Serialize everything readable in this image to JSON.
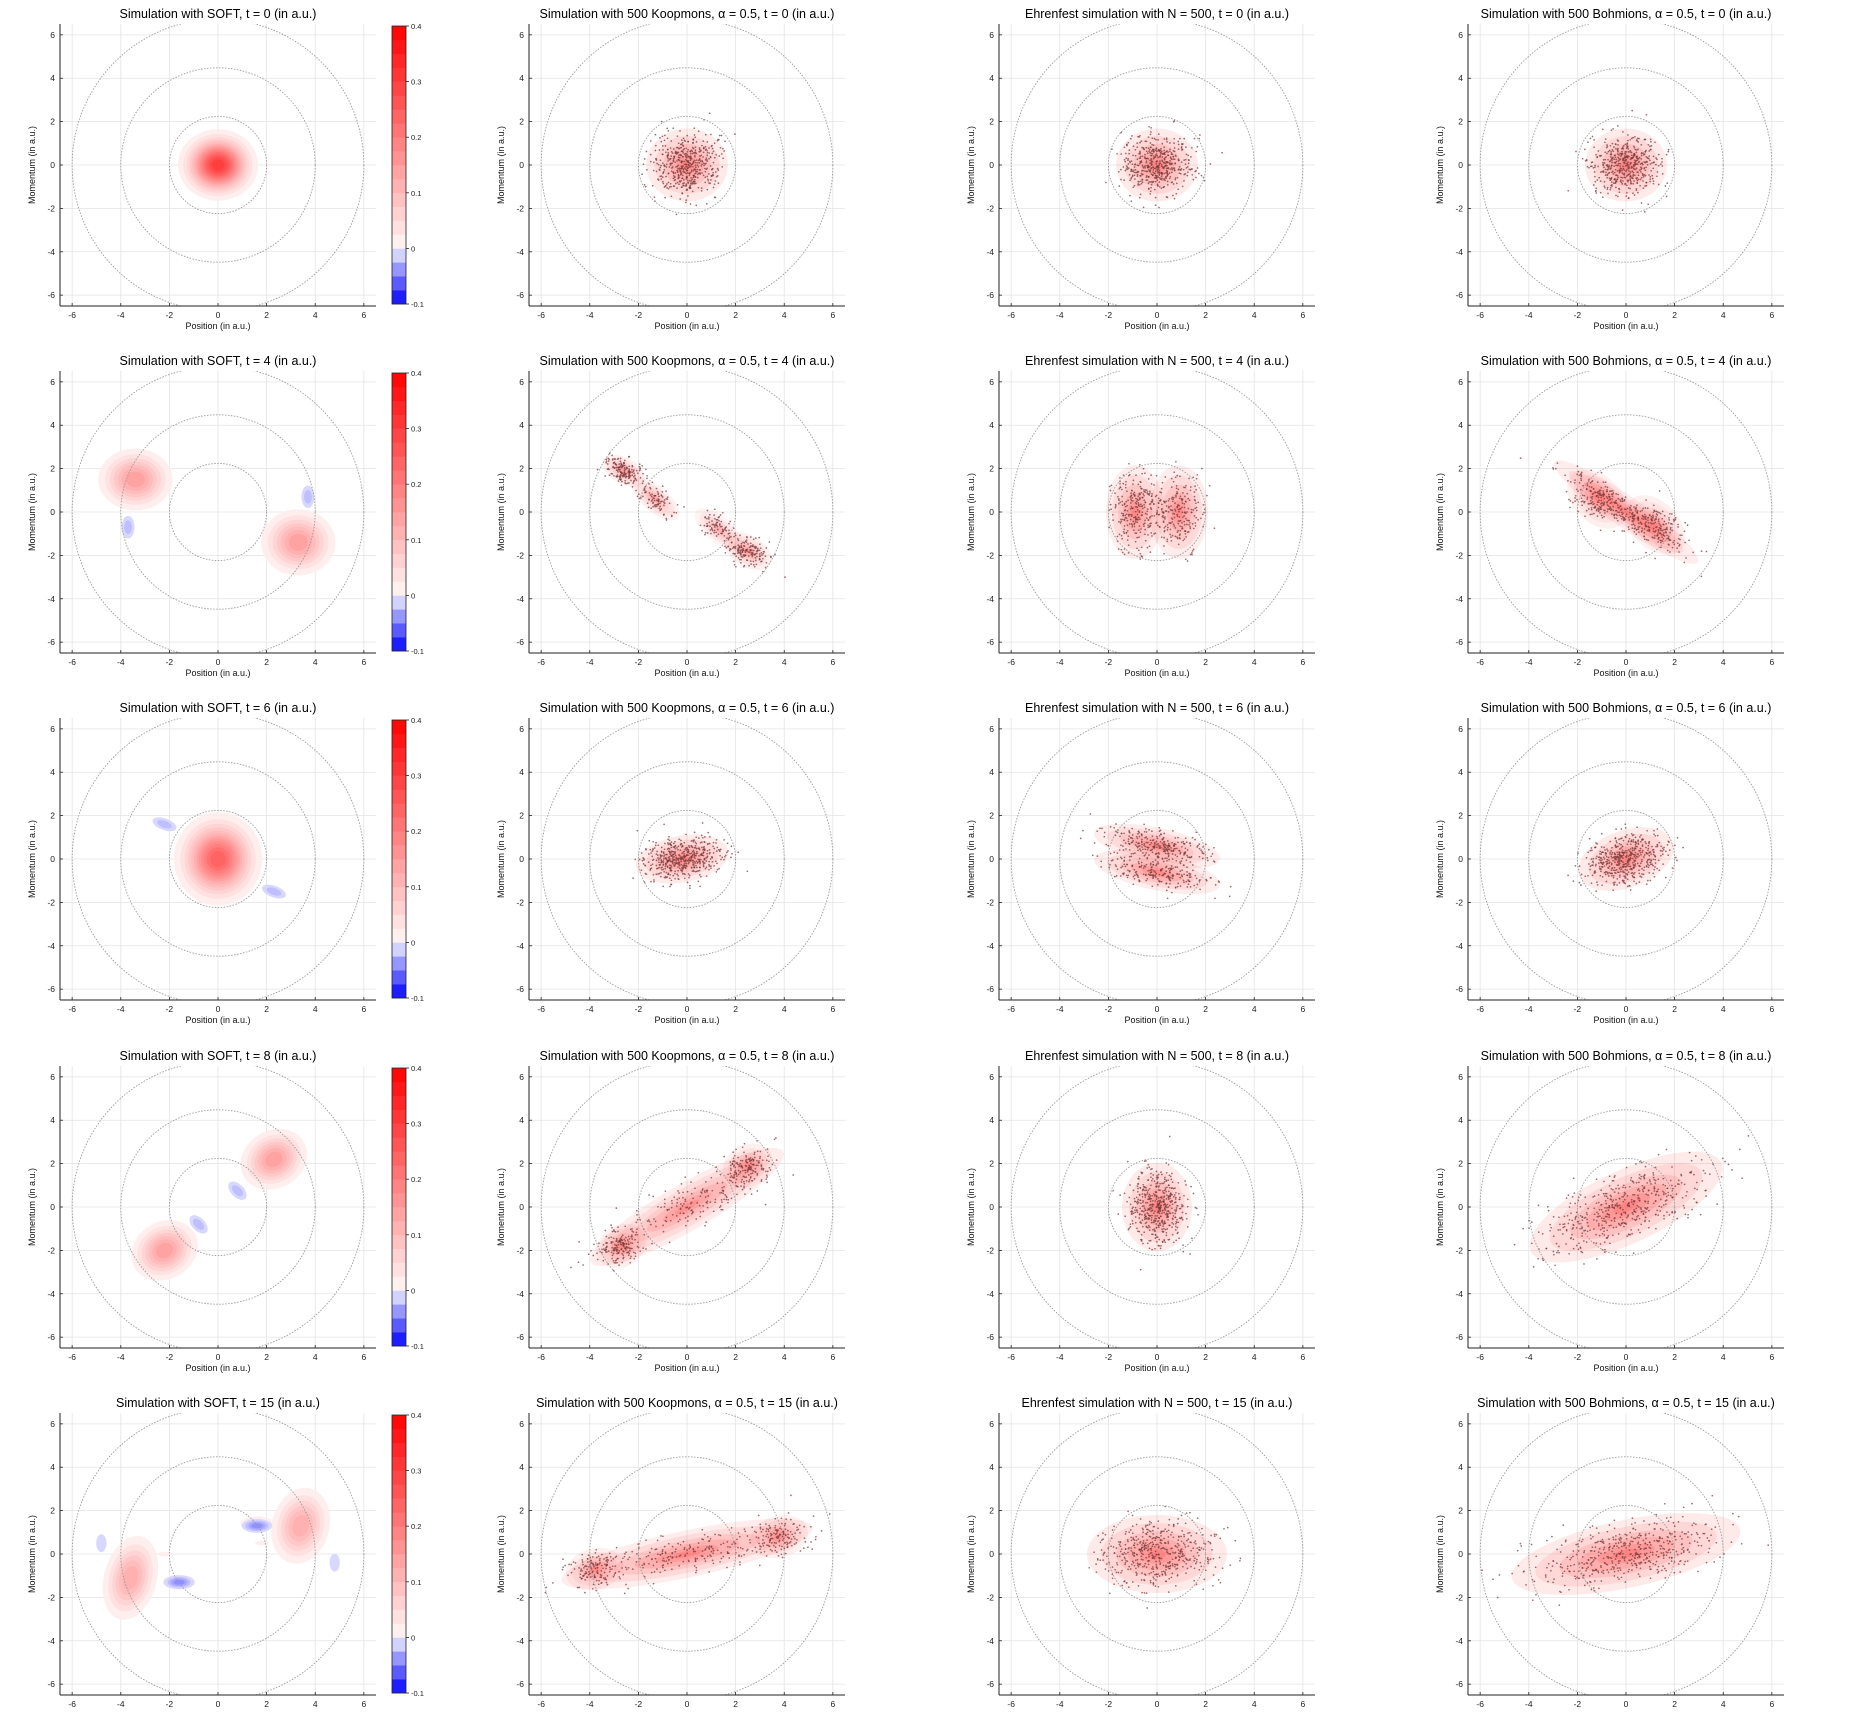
{
  "figure": {
    "rows": [
      {
        "t": 0,
        "titles": [
          "Simulation with SOFT, t = 0 (in a.u.)",
          "Simulation with 500 Koopmons, α = 0.5, t = 0 (in a.u.)",
          "Ehrenfest simulation with N = 500, t = 0 (in a.u.)",
          "Simulation with 500 Bohmions, α = 0.5, t = 0 (in a.u.)"
        ]
      },
      {
        "t": 4,
        "titles": [
          "Simulation with SOFT, t = 4 (in a.u.)",
          "Simulation with 500 Koopmons, α = 0.5, t = 4 (in a.u.)",
          "Ehrenfest simulation with N = 500, t = 4 (in a.u.)",
          "Simulation with 500 Bohmions, α = 0.5, t = 4 (in a.u.)"
        ]
      },
      {
        "t": 6,
        "titles": [
          "Simulation with SOFT, t = 6 (in a.u.)",
          "Simulation with 500 Koopmons, α = 0.5, t = 6 (in a.u.)",
          "Ehrenfest simulation with N = 500, t = 6 (in a.u.)",
          "Simulation with 500 Bohmions, α = 0.5, t = 6 (in a.u.)"
        ]
      },
      {
        "t": 8,
        "titles": [
          "Simulation with SOFT, t = 8 (in a.u.)",
          "Simulation with 500 Koopmons, α = 0.5, t = 8 (in a.u.)",
          "Ehrenfest simulation with N = 500, t = 8 (in a.u.)",
          "Simulation with 500 Bohmions, α = 0.5, t = 8 (in a.u.)"
        ]
      },
      {
        "t": 15,
        "titles": [
          "Simulation with SOFT, t = 15 (in a.u.)",
          "Simulation with 500 Koopmons, α = 0.5, t = 15 (in a.u.)",
          "Ehrenfest simulation with N = 500, t = 15 (in a.u.)",
          "Simulation with 500 Bohmions, α = 0.5, t = 15 (in a.u.)"
        ]
      }
    ],
    "xlabel": "Position (in a.u.)",
    "ylabel": "Momentum (in a.u.)",
    "colors": {
      "positive": "#ff0000",
      "negative": "#0000ff",
      "particle": "#7a3a3a",
      "contour": "#9a9a9a",
      "grid": "#e4e4e4",
      "axis": "#222222"
    }
  },
  "chart_data": {
    "type": "heatmap",
    "layout": "grid",
    "grid_rows": 5,
    "grid_cols": 4,
    "xlim": [
      -6.5,
      6.5
    ],
    "ylim": [
      -6.5,
      6.5
    ],
    "xticks": [
      -6,
      -4,
      -2,
      0,
      2,
      4,
      6
    ],
    "yticks": [
      -6,
      -4,
      -2,
      0,
      2,
      4,
      6
    ],
    "xticklabels": [
      "-6",
      "-4",
      "-2",
      "0",
      "2",
      "4",
      "6"
    ],
    "yticklabels": [
      "-6",
      "-4",
      "-2",
      "0",
      "2",
      "4",
      "6"
    ],
    "grid": true,
    "energy_contour_radii": [
      2,
      4,
      6
    ],
    "colorbar": {
      "min": -0.1,
      "max": 0.4,
      "ticks": [
        0.4,
        0.3,
        0.2,
        0.1,
        0,
        -0.1
      ],
      "ticklabels": [
        "0.4",
        "0.3",
        "0.2",
        "0.1",
        "0",
        "-0.1"
      ]
    },
    "particles_per_panel": 500,
    "soft_wigner_components": [
      [
        {
          "x": 0,
          "p": 0,
          "sx": 0.7,
          "sy": 0.7,
          "rot": 0,
          "amp": 0.32
        }
      ],
      [
        {
          "x": -3.4,
          "p": 1.5,
          "sx": 0.75,
          "sy": 0.7,
          "rot": 0,
          "amp": 0.16
        },
        {
          "x": 3.3,
          "p": -1.4,
          "sx": 0.75,
          "sy": 0.75,
          "rot": 0,
          "amp": 0.16
        },
        {
          "x": 3.7,
          "p": 0.7,
          "sx": 0.18,
          "sy": 0.35,
          "rot": 0,
          "amp": -0.03
        },
        {
          "x": -3.7,
          "p": -0.7,
          "sx": 0.18,
          "sy": 0.35,
          "rot": 0,
          "amp": -0.03
        },
        {
          "x": 0,
          "p": 0,
          "sx": 0.15,
          "sy": 0.05,
          "rot": -20,
          "amp": -0.01
        }
      ],
      [
        {
          "x": 0,
          "p": 0,
          "sx": 0.8,
          "sy": 0.95,
          "rot": 0,
          "amp": 0.26
        },
        {
          "x": -2.2,
          "p": 1.6,
          "sx": 0.35,
          "sy": 0.18,
          "rot": -20,
          "amp": -0.03
        },
        {
          "x": 2.3,
          "p": -1.5,
          "sx": 0.35,
          "sy": 0.18,
          "rot": -20,
          "amp": -0.03
        }
      ],
      [
        {
          "x": 2.3,
          "p": 2.2,
          "sx": 0.7,
          "sy": 0.65,
          "rot": 30,
          "amp": 0.16
        },
        {
          "x": -2.2,
          "p": -2.0,
          "sx": 0.7,
          "sy": 0.65,
          "rot": 30,
          "amp": 0.16
        },
        {
          "x": 0.8,
          "p": 0.75,
          "sx": 0.18,
          "sy": 0.35,
          "rot": 45,
          "amp": -0.03
        },
        {
          "x": -0.8,
          "p": -0.8,
          "sx": 0.18,
          "sy": 0.35,
          "rot": 45,
          "amp": -0.03
        },
        {
          "x": 0,
          "p": 0,
          "sx": 0.2,
          "sy": 0.2,
          "rot": 0,
          "amp": 0.02
        }
      ],
      [
        {
          "x": -3.6,
          "p": -1.1,
          "sx": 0.55,
          "sy": 1.0,
          "rot": -15,
          "amp": 0.14
        },
        {
          "x": 3.4,
          "p": 1.3,
          "sx": 0.6,
          "sy": 0.9,
          "rot": -15,
          "amp": 0.14
        },
        {
          "x": -1.6,
          "p": -1.3,
          "sx": 0.5,
          "sy": 0.25,
          "rot": 0,
          "amp": 0.05
        },
        {
          "x": 1.6,
          "p": 1.4,
          "sx": 0.5,
          "sy": 0.25,
          "rot": 0,
          "amp": 0.05
        },
        {
          "x": 1.6,
          "p": 1.3,
          "sx": 0.35,
          "sy": 0.18,
          "rot": 0,
          "amp": -0.05
        },
        {
          "x": -1.6,
          "p": -1.3,
          "sx": 0.35,
          "sy": 0.18,
          "rot": 0,
          "amp": -0.05
        },
        {
          "x": 1.8,
          "p": 0.5,
          "sx": 0.3,
          "sy": 0.12,
          "rot": 0,
          "amp": 0.03
        },
        {
          "x": -2.2,
          "p": 0.0,
          "sx": 0.3,
          "sy": 0.12,
          "rot": 0,
          "amp": 0.03
        },
        {
          "x": -4.8,
          "p": 0.5,
          "sx": 0.18,
          "sy": 0.35,
          "rot": 0,
          "amp": -0.02
        },
        {
          "x": 4.8,
          "p": -0.4,
          "sx": 0.18,
          "sy": 0.35,
          "rot": 0,
          "amp": -0.02
        },
        {
          "x": 1.6,
          "p": -0.4,
          "sx": 0.3,
          "sy": 0.12,
          "rot": 0,
          "amp": 0.02
        }
      ]
    ],
    "particle_clouds": [
      [
        {
          "x": 0,
          "p": 0,
          "sx": 0.7,
          "sy": 0.7,
          "rot": 0,
          "w": 1
        }
      ],
      [
        {
          "x": -2.6,
          "p": 1.9,
          "sx": 0.4,
          "sy": 0.25,
          "rot": -30,
          "w": 0.35
        },
        {
          "x": -1.3,
          "p": 0.6,
          "sx": 0.5,
          "sy": 0.25,
          "rot": -40,
          "w": 0.2
        },
        {
          "x": 1.3,
          "p": -0.8,
          "sx": 0.5,
          "sy": 0.25,
          "rot": -40,
          "w": 0.15
        },
        {
          "x": 2.5,
          "p": -1.8,
          "sx": 0.45,
          "sy": 0.3,
          "rot": -30,
          "w": 0.3
        }
      ],
      [
        {
          "x": -0.9,
          "p": 0,
          "sx": 0.5,
          "sy": 0.9,
          "rot": 0,
          "w": 0.5
        },
        {
          "x": 0.9,
          "p": 0,
          "sx": 0.5,
          "sy": 0.9,
          "rot": 0,
          "w": 0.5
        }
      ],
      [
        {
          "x": -1.2,
          "p": 0.6,
          "sx": 0.6,
          "sy": 0.45,
          "rot": -45,
          "w": 0.25
        },
        {
          "x": 1.2,
          "p": -0.6,
          "sx": 0.6,
          "sy": 0.45,
          "rot": -45,
          "w": 0.25
        },
        {
          "x": 0,
          "p": 0,
          "sx": 1.5,
          "sy": 0.3,
          "rot": -35,
          "w": 0.5
        }
      ],
      [
        {
          "x": -0.2,
          "p": 0,
          "sx": 0.8,
          "sy": 0.45,
          "rot": 10,
          "w": 1
        }
      ],
      [
        {
          "x": 0,
          "p": 0.6,
          "sx": 1.1,
          "sy": 0.35,
          "rot": -12,
          "w": 0.5
        },
        {
          "x": 0,
          "p": -0.6,
          "sx": 1.1,
          "sy": 0.35,
          "rot": -12,
          "w": 0.5
        }
      ],
      [
        {
          "x": 0,
          "p": 0,
          "sx": 0.85,
          "sy": 0.55,
          "rot": 20,
          "w": 1
        }
      ],
      [
        {
          "x": 2.5,
          "p": 1.9,
          "sx": 0.45,
          "sy": 0.4,
          "rot": 30,
          "w": 0.3
        },
        {
          "x": -2.7,
          "p": -1.8,
          "sx": 0.45,
          "sy": 0.4,
          "rot": 30,
          "w": 0.3
        },
        {
          "x": 0,
          "p": 0,
          "sx": 1.9,
          "sy": 0.45,
          "rot": 30,
          "w": 0.4
        }
      ],
      [
        {
          "x": 0,
          "p": 0,
          "sx": 0.6,
          "sy": 0.85,
          "rot": 0,
          "w": 1
        }
      ],
      [
        {
          "x": 0,
          "p": 0,
          "sx": 1.8,
          "sy": 0.7,
          "rot": 25,
          "w": 1
        }
      ],
      [
        {
          "x": -3.8,
          "p": -0.7,
          "sx": 0.5,
          "sy": 0.4,
          "rot": 15,
          "w": 0.25
        },
        {
          "x": 3.8,
          "p": 0.8,
          "sx": 0.5,
          "sy": 0.4,
          "rot": 15,
          "w": 0.25
        },
        {
          "x": 0,
          "p": 0,
          "sx": 2.2,
          "sy": 0.45,
          "rot": 12,
          "w": 0.5
        }
      ],
      [
        {
          "x": 0,
          "p": 0,
          "sx": 1.2,
          "sy": 0.75,
          "rot": 0,
          "w": 1
        }
      ],
      [
        {
          "x": 0,
          "p": 0,
          "sx": 2.0,
          "sy": 0.65,
          "rot": 12,
          "w": 1
        }
      ]
    ],
    "cloud_index": [
      [
        null,
        0,
        0,
        0
      ],
      [
        null,
        1,
        2,
        3
      ],
      [
        null,
        4,
        5,
        6
      ],
      [
        null,
        7,
        8,
        9
      ],
      [
        null,
        10,
        11,
        12
      ]
    ]
  }
}
